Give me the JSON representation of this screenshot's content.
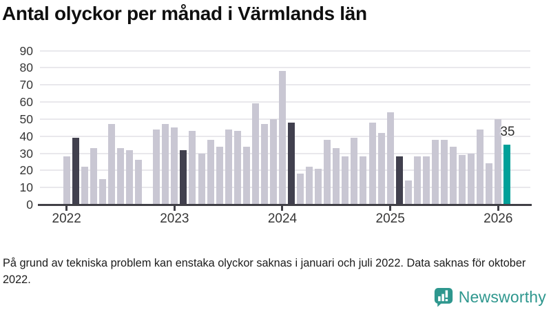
{
  "title": "Antal olyckor per månad i Värmlands län",
  "footnote": "På grund av tekniska problem kan enstaka olyckor saknas i januari och juli 2022. Data saknas för oktober 2022.",
  "branding": {
    "name": "Newsworthy",
    "color": "#2e978e"
  },
  "colors": {
    "bar_default": "#c9c7d3",
    "bar_reference": "#41404e",
    "bar_latest": "#00a099",
    "axis": "#403f46",
    "grid": "#e9e8ec",
    "tick_text": "#363636"
  },
  "chart_data": {
    "type": "bar",
    "title": "Antal olyckor per månad i Värmlands län",
    "xlabel": "",
    "ylabel": "",
    "ylim": [
      0,
      90
    ],
    "y_ticks": [
      0,
      10,
      20,
      30,
      40,
      50,
      60,
      70,
      80,
      90
    ],
    "x_tick_labels": [
      "2022",
      "2023",
      "2024",
      "2025",
      "2026"
    ],
    "grid": "horizontal",
    "legend_position": "none",
    "annotation": {
      "text": "35",
      "month": "2026-02"
    },
    "missing_months": [
      "2022-10"
    ],
    "series": [
      {
        "name": "Antal olyckor",
        "points": [
          {
            "month": "2022-01",
            "value": 28,
            "style": "default"
          },
          {
            "month": "2022-02",
            "value": 39,
            "style": "reference"
          },
          {
            "month": "2022-03",
            "value": 22,
            "style": "default"
          },
          {
            "month": "2022-04",
            "value": 33,
            "style": "default"
          },
          {
            "month": "2022-05",
            "value": 15,
            "style": "default"
          },
          {
            "month": "2022-06",
            "value": 47,
            "style": "default"
          },
          {
            "month": "2022-07",
            "value": 33,
            "style": "default"
          },
          {
            "month": "2022-08",
            "value": 32,
            "style": "default"
          },
          {
            "month": "2022-09",
            "value": 26,
            "style": "default"
          },
          {
            "month": "2022-10",
            "value": null,
            "style": "default"
          },
          {
            "month": "2022-11",
            "value": 44,
            "style": "default"
          },
          {
            "month": "2022-12",
            "value": 47,
            "style": "default"
          },
          {
            "month": "2023-01",
            "value": 45,
            "style": "default"
          },
          {
            "month": "2023-02",
            "value": 32,
            "style": "reference"
          },
          {
            "month": "2023-03",
            "value": 43,
            "style": "default"
          },
          {
            "month": "2023-04",
            "value": 30,
            "style": "default"
          },
          {
            "month": "2023-05",
            "value": 38,
            "style": "default"
          },
          {
            "month": "2023-06",
            "value": 34,
            "style": "default"
          },
          {
            "month": "2023-07",
            "value": 44,
            "style": "default"
          },
          {
            "month": "2023-08",
            "value": 43,
            "style": "default"
          },
          {
            "month": "2023-09",
            "value": 34,
            "style": "default"
          },
          {
            "month": "2023-10",
            "value": 59,
            "style": "default"
          },
          {
            "month": "2023-11",
            "value": 47,
            "style": "default"
          },
          {
            "month": "2023-12",
            "value": 50,
            "style": "default"
          },
          {
            "month": "2024-01",
            "value": 78,
            "style": "default"
          },
          {
            "month": "2024-02",
            "value": 48,
            "style": "reference"
          },
          {
            "month": "2024-03",
            "value": 18,
            "style": "default"
          },
          {
            "month": "2024-04",
            "value": 22,
            "style": "default"
          },
          {
            "month": "2024-05",
            "value": 21,
            "style": "default"
          },
          {
            "month": "2024-06",
            "value": 38,
            "style": "default"
          },
          {
            "month": "2024-07",
            "value": 33,
            "style": "default"
          },
          {
            "month": "2024-08",
            "value": 28,
            "style": "default"
          },
          {
            "month": "2024-09",
            "value": 39,
            "style": "default"
          },
          {
            "month": "2024-10",
            "value": 28,
            "style": "default"
          },
          {
            "month": "2024-11",
            "value": 48,
            "style": "default"
          },
          {
            "month": "2024-12",
            "value": 42,
            "style": "default"
          },
          {
            "month": "2025-01",
            "value": 54,
            "style": "default"
          },
          {
            "month": "2025-02",
            "value": 28,
            "style": "reference"
          },
          {
            "month": "2025-03",
            "value": 14,
            "style": "default"
          },
          {
            "month": "2025-04",
            "value": 28,
            "style": "default"
          },
          {
            "month": "2025-05",
            "value": 28,
            "style": "default"
          },
          {
            "month": "2025-06",
            "value": 38,
            "style": "default"
          },
          {
            "month": "2025-07",
            "value": 38,
            "style": "default"
          },
          {
            "month": "2025-08",
            "value": 34,
            "style": "default"
          },
          {
            "month": "2025-09",
            "value": 29,
            "style": "default"
          },
          {
            "month": "2025-10",
            "value": 30,
            "style": "default"
          },
          {
            "month": "2025-11",
            "value": 44,
            "style": "default"
          },
          {
            "month": "2025-12",
            "value": 24,
            "style": "default"
          },
          {
            "month": "2026-01",
            "value": 50,
            "style": "default"
          },
          {
            "month": "2026-02",
            "value": 35,
            "style": "latest"
          }
        ]
      }
    ]
  }
}
